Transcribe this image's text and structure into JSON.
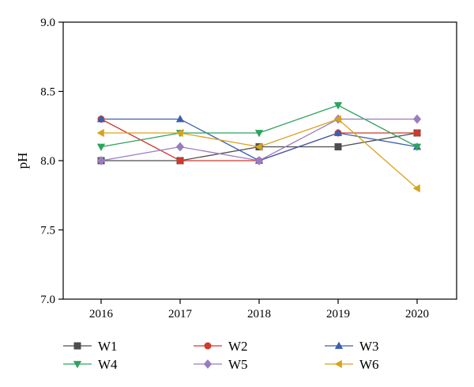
{
  "chart_data": {
    "type": "line",
    "title": "",
    "xlabel": "",
    "ylabel": "pH",
    "categories": [
      "2016",
      "2017",
      "2018",
      "2019",
      "2020"
    ],
    "ylim": [
      7.0,
      9.0
    ],
    "yticks": [
      "7.0",
      "7.5",
      "8.0",
      "8.5",
      "9.0"
    ],
    "grid": false,
    "legend_position": "bottom",
    "series": [
      {
        "name": "W1",
        "marker": "square",
        "color": "#4d4d4d",
        "values": [
          8.0,
          8.0,
          8.1,
          8.1,
          8.2
        ]
      },
      {
        "name": "W2",
        "marker": "circle",
        "color": "#d0392b",
        "values": [
          8.3,
          8.0,
          8.0,
          8.2,
          8.2
        ]
      },
      {
        "name": "W3",
        "marker": "triangle-up",
        "color": "#3a5fb0",
        "values": [
          8.3,
          8.3,
          8.0,
          8.2,
          8.1
        ]
      },
      {
        "name": "W4",
        "marker": "triangle-down",
        "color": "#2ea35f",
        "values": [
          8.1,
          8.2,
          8.2,
          8.4,
          8.1
        ]
      },
      {
        "name": "W5",
        "marker": "diamond",
        "color": "#9b7cc0",
        "values": [
          8.0,
          8.1,
          8.0,
          8.3,
          8.3
        ]
      },
      {
        "name": "W6",
        "marker": "triangle-left",
        "color": "#d9a21b",
        "values": [
          8.2,
          8.2,
          8.1,
          8.3,
          7.8
        ]
      }
    ]
  }
}
